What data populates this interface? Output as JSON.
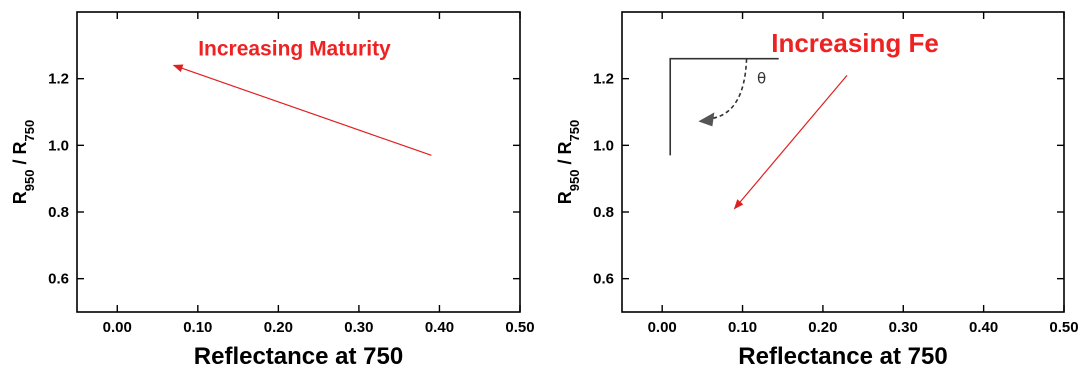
{
  "chart_data": [
    {
      "type": "scatter",
      "title": "",
      "xlabel": "Reflectance at 750",
      "ylabel": {
        "main": "R",
        "sub1": "950",
        "sep": " / R",
        "sub2": "750"
      },
      "xlim": [
        -0.05,
        0.5
      ],
      "ylim": [
        0.5,
        1.4
      ],
      "xticks": [
        "0.00",
        "0.10",
        "0.20",
        "0.30",
        "0.40",
        "0.50"
      ],
      "xtick_values": [
        0.0,
        0.1,
        0.2,
        0.3,
        0.4,
        0.5
      ],
      "yticks": [
        "0.6",
        "0.8",
        "1.0",
        "1.2"
      ],
      "ytick_values": [
        0.6,
        0.8,
        1.0,
        1.2
      ],
      "grid": false,
      "annotation": {
        "text": "Increasing Maturity",
        "x": 0.22,
        "y": 1.27
      },
      "arrow": {
        "from": [
          0.39,
          0.97
        ],
        "to": [
          0.07,
          1.24
        ]
      }
    },
    {
      "type": "scatter",
      "title": "",
      "xlabel": "Reflectance at 750",
      "ylabel": {
        "main": "R",
        "sub1": "950",
        "sep": " / R",
        "sub2": "750"
      },
      "xlim": [
        -0.05,
        0.5
      ],
      "ylim": [
        0.5,
        1.4
      ],
      "xticks": [
        "0.00",
        "0.10",
        "0.20",
        "0.30",
        "0.40",
        "0.50"
      ],
      "xtick_values": [
        0.0,
        0.1,
        0.2,
        0.3,
        0.4,
        0.5
      ],
      "yticks": [
        "0.6",
        "0.8",
        "1.0",
        "1.2"
      ],
      "ytick_values": [
        0.6,
        0.8,
        1.0,
        1.2
      ],
      "grid": false,
      "annotation": {
        "text": "Increasing Fe",
        "x": 0.24,
        "y": 1.28
      },
      "arrow": {
        "from": [
          0.23,
          1.21
        ],
        "to": [
          0.09,
          0.81
        ]
      },
      "inset": {
        "symbol": "θ"
      }
    }
  ]
}
